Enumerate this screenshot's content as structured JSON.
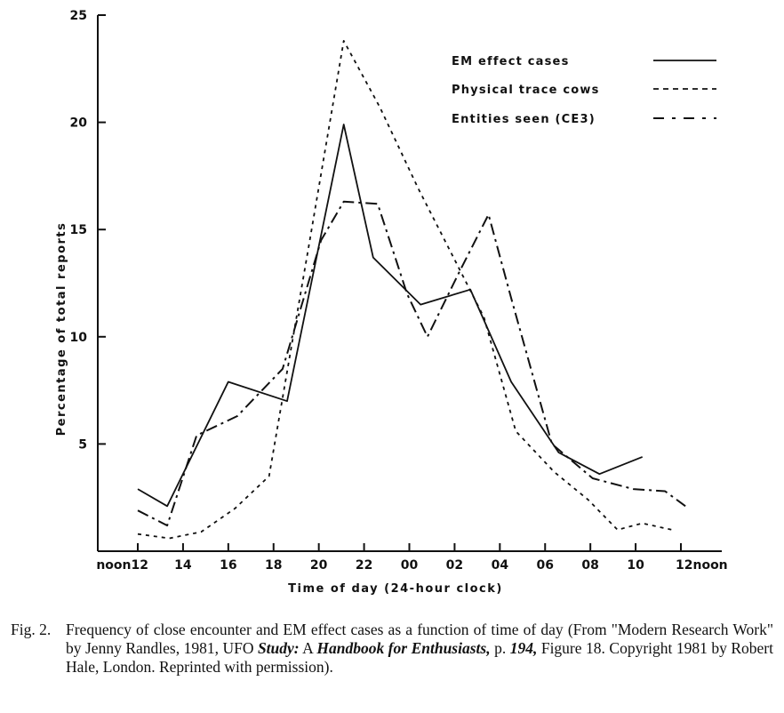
{
  "chart_data": {
    "type": "line",
    "title": "",
    "xlabel": "Time of day (24-hour clock)",
    "ylabel": "Percentage of total reports",
    "x": [
      12,
      13.3,
      16,
      18.6,
      21.1,
      22.4,
      24.5,
      26.7,
      28.5,
      30.6,
      32.4,
      34.3,
      36
    ],
    "xlim": [
      12,
      36
    ],
    "ylim": [
      0,
      25
    ],
    "xticks": [
      12,
      14,
      16,
      18,
      20,
      22,
      24,
      26,
      28,
      30,
      32,
      34,
      36
    ],
    "xtick_labels": [
      "noon12",
      "14",
      "16",
      "18",
      "20",
      "22",
      "00",
      "02",
      "04",
      "06",
      "08",
      "10",
      "12noon"
    ],
    "yticks": [
      5,
      10,
      15,
      20,
      25
    ],
    "ytick_labels": [
      "5",
      "10",
      "15",
      "20",
      "25"
    ],
    "grid": false,
    "legend_position": "top-right",
    "series": [
      {
        "name": "EM effect cases",
        "style": "solid",
        "x": [
          12,
          13.3,
          16,
          18.6,
          21.1,
          22.4,
          24.5,
          26.7,
          28.5,
          30.6,
          32.4,
          34.3
        ],
        "values": [
          2.9,
          2.1,
          7.9,
          7.0,
          19.9,
          13.7,
          11.5,
          12.2,
          7.9,
          4.6,
          3.6,
          4.4
        ]
      },
      {
        "name": "Physical trace cows",
        "style": "dotted",
        "x": [
          12,
          13.4,
          14.8,
          16.3,
          17.8,
          19.6,
          21.1,
          22.7,
          24.4,
          26.0,
          27.3,
          28.7,
          30.4,
          31.9,
          33.2,
          34.3,
          35.6
        ],
        "values": [
          0.8,
          0.6,
          0.9,
          2.0,
          3.5,
          14.5,
          23.8,
          20.7,
          16.9,
          13.6,
          10.9,
          5.6,
          3.7,
          2.4,
          1.0,
          1.3,
          1.0
        ]
      },
      {
        "name": "Entities seen (CE3)",
        "style": "dash-dot",
        "x": [
          12,
          13.3,
          14.6,
          16.4,
          18.4,
          20.1,
          21.1,
          22.6,
          23.9,
          24.8,
          26.2,
          27.5,
          28.5,
          30.3,
          32.1,
          33.9,
          35.3,
          36.2
        ],
        "values": [
          1.9,
          1.2,
          5.4,
          6.3,
          8.5,
          14.5,
          16.3,
          16.2,
          12.0,
          10.0,
          13.0,
          15.7,
          11.8,
          5.0,
          3.4,
          2.9,
          2.8,
          2.1
        ]
      }
    ]
  },
  "caption": {
    "label": "Fig. 2.",
    "part1": "Frequency of close encounter and EM effect cases as a function of time of day (From \"Modern Research Work\" by Jenny Randles, 1981,  UFO ",
    "title_em": "Study:",
    "part2": " A ",
    "title_em2": "Handbook for Enthusiasts,",
    "part3": " p. ",
    "page_em": "194,",
    "part4": " Figure 18. Copyright 1981 by Robert Hale, London. Reprinted with permission)."
  }
}
